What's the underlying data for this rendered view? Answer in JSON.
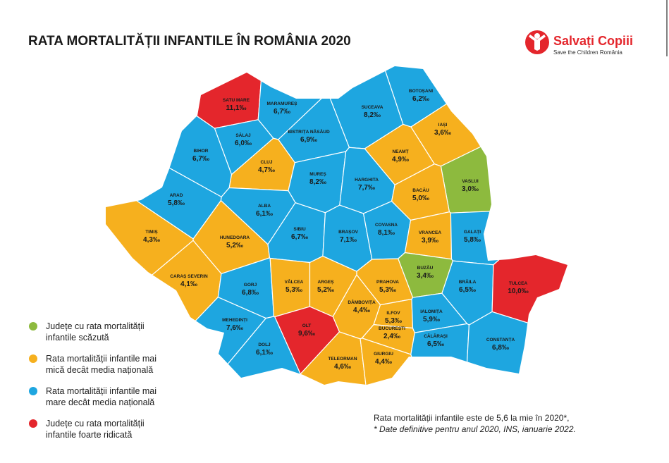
{
  "header": {
    "title": "RATA MORTALITĂȚII INFANTILE ÎN ROMÂNIA 2020",
    "logo_name": "Salvați Copiii",
    "logo_tagline": "Save the Children România"
  },
  "legend": [
    {
      "color": "#8dba3e",
      "lines": [
        "Județe cu rata mortalității",
        "infantile scăzută"
      ]
    },
    {
      "color": "#f6b01e",
      "lines": [
        "Rata mortalității infantile mai",
        "mică decât media națională"
      ]
    },
    {
      "color": "#1ea6e0",
      "lines": [
        "Rata mortalității infantile mai",
        "mare decât media națională"
      ]
    },
    {
      "color": "#e4262c",
      "lines": [
        "Județe cu rata mortalității",
        "infantile foarte ridicată"
      ]
    }
  ],
  "counties": [
    {
      "name": "SATU MARE",
      "value": "11,1‰",
      "level": 3
    },
    {
      "name": "MARAMUREȘ",
      "value": "6,7‰",
      "level": 2
    },
    {
      "name": "BOTOȘANI",
      "value": "6,2‰",
      "level": 2
    },
    {
      "name": "SUCEAVA",
      "value": "8,2‰",
      "level": 2
    },
    {
      "name": "IAȘI",
      "value": "3,6‰",
      "level": 1
    },
    {
      "name": "SĂLAJ",
      "value": "6,0‰",
      "level": 2
    },
    {
      "name": "BISTRIȚA NĂSĂUD",
      "value": "6,9‰",
      "level": 2
    },
    {
      "name": "BIHOR",
      "value": "6,7‰",
      "level": 2
    },
    {
      "name": "CLUJ",
      "value": "4,7‰",
      "level": 1
    },
    {
      "name": "NEAMȚ",
      "value": "4,9‰",
      "level": 1
    },
    {
      "name": "MUREȘ",
      "value": "8,2‰",
      "level": 2
    },
    {
      "name": "HARGHITA",
      "value": "7,7‰",
      "level": 2
    },
    {
      "name": "VASLUI",
      "value": "3,0‰",
      "level": 0
    },
    {
      "name": "ARAD",
      "value": "5,8‰",
      "level": 2
    },
    {
      "name": "ALBA",
      "value": "6,1‰",
      "level": 2
    },
    {
      "name": "BACĂU",
      "value": "5,0‰",
      "level": 1
    },
    {
      "name": "TIMIȘ",
      "value": "4,3‰",
      "level": 1
    },
    {
      "name": "HUNEDOARA",
      "value": "5,2‰",
      "level": 1
    },
    {
      "name": "SIBIU",
      "value": "6,7‰",
      "level": 2
    },
    {
      "name": "BRAȘOV",
      "value": "7,1‰",
      "level": 2
    },
    {
      "name": "COVASNA",
      "value": "8,1‰",
      "level": 2
    },
    {
      "name": "VRANCEA",
      "value": "3,9‰",
      "level": 1
    },
    {
      "name": "GALAȚI",
      "value": "5,8‰",
      "level": 2
    },
    {
      "name": "CARAȘ SEVERIN",
      "value": "4,1‰",
      "level": 1
    },
    {
      "name": "GORJ",
      "value": "6,8‰",
      "level": 2
    },
    {
      "name": "VÂLCEA",
      "value": "5,3‰",
      "level": 1
    },
    {
      "name": "ARGEȘ",
      "value": "5,2‰",
      "level": 1
    },
    {
      "name": "PRAHOVA",
      "value": "5,3‰",
      "level": 1
    },
    {
      "name": "BUZĂU",
      "value": "3,4‰",
      "level": 0
    },
    {
      "name": "BRĂILA",
      "value": "6,5‰",
      "level": 2
    },
    {
      "name": "TULCEA",
      "value": "10,0‰",
      "level": 3
    },
    {
      "name": "DÂMBOVIȚA",
      "value": "4,4‰",
      "level": 1
    },
    {
      "name": "MEHEDINȚI",
      "value": "7,6‰",
      "level": 2
    },
    {
      "name": "OLT",
      "value": "9,6‰",
      "level": 3
    },
    {
      "name": "ILFOV",
      "value": "5,3‰",
      "level": 1
    },
    {
      "name": "BUCUREȘTI",
      "value": "2,4‰",
      "level": 1
    },
    {
      "name": "IALOMIȚA",
      "value": "5,9‰",
      "level": 2
    },
    {
      "name": "DOLJ",
      "value": "6,1‰",
      "level": 2
    },
    {
      "name": "TELEORMAN",
      "value": "4,6‰",
      "level": 1
    },
    {
      "name": "GIURGIU",
      "value": "4,4‰",
      "level": 1
    },
    {
      "name": "CĂLĂRAȘI",
      "value": "6,5‰",
      "level": 2
    },
    {
      "name": "CONSTANȚA",
      "value": "6,8‰",
      "level": 2
    }
  ],
  "footnote": {
    "line1": "Rata mortalității infantile este de 5,6 la mie în 2020*,",
    "line2": "* Date definitive pentru anul 2020, INS, ianuarie 2022."
  }
}
